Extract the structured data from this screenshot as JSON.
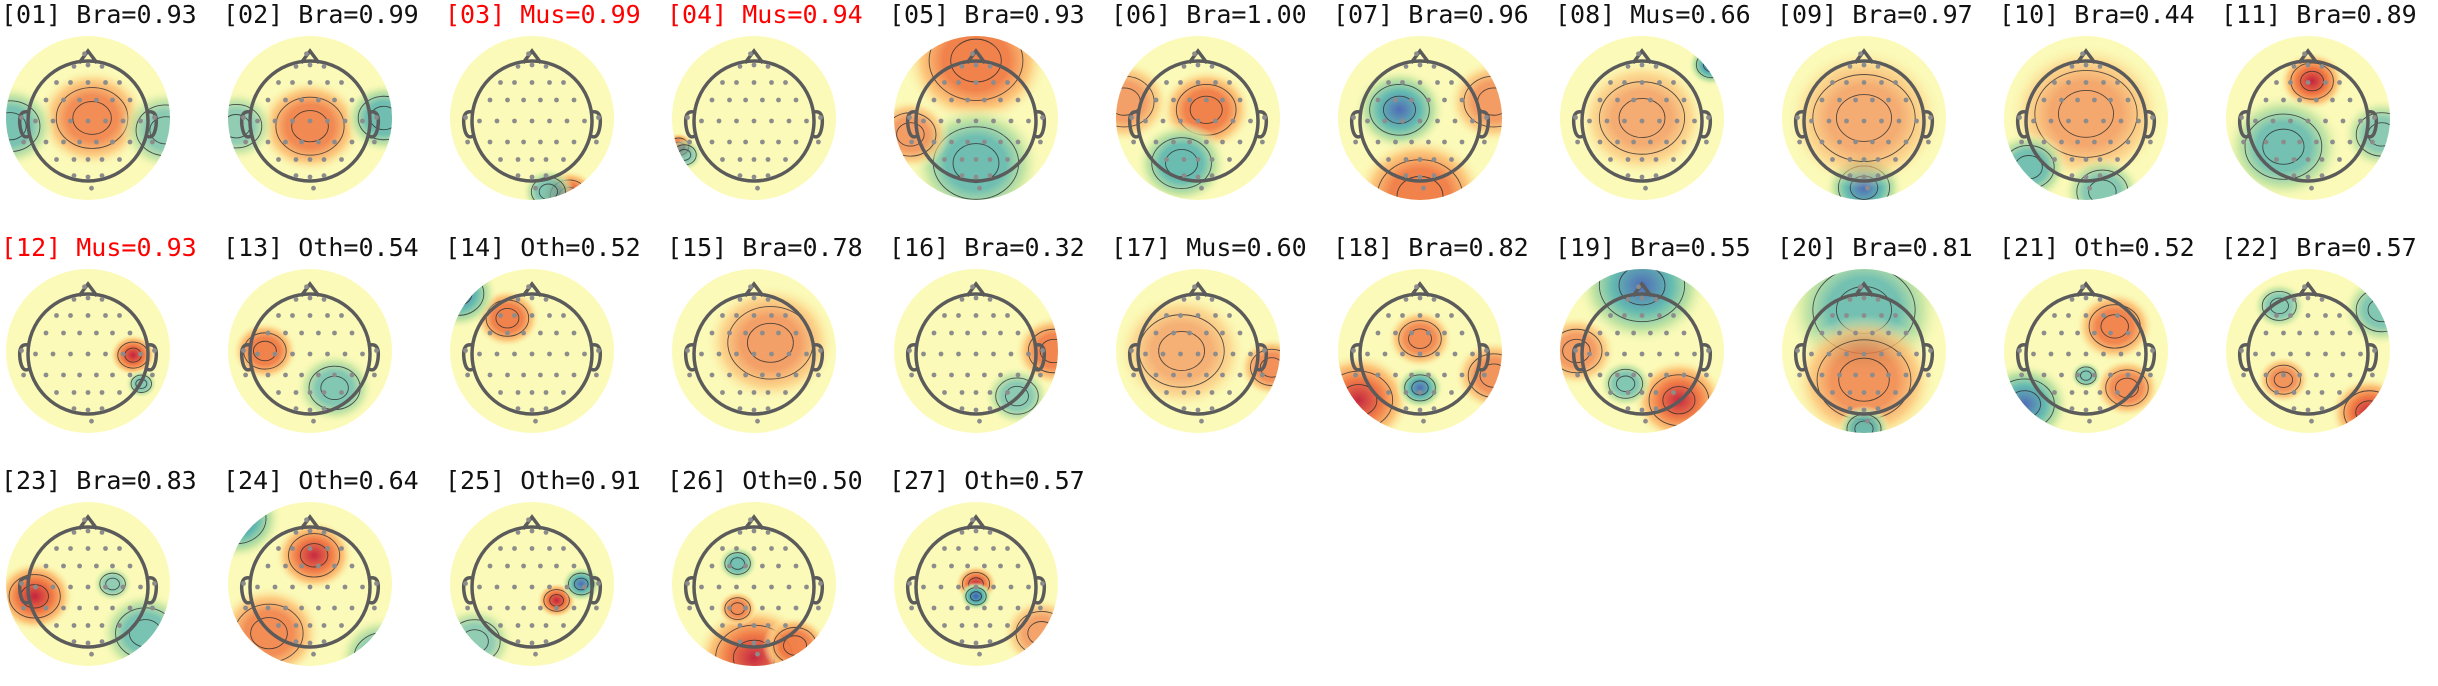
{
  "colors": {
    "label_default": "#111111",
    "label_flagged": "#ff0000",
    "colormap": [
      "#3e5fb6",
      "#56b4b0",
      "#bfe3a0",
      "#fbfab8",
      "#fcc77a",
      "#f07a45",
      "#c4233d"
    ],
    "head_outline": "#5b5b5b",
    "sensor": "#8c8c8c",
    "contour": "#2c2c2c"
  },
  "components": [
    {
      "label": "[01] Bra=0.93",
      "flagged": false,
      "icon": "topomap-icon"
    },
    {
      "label": "[02] Bra=0.99",
      "flagged": false,
      "icon": "topomap-icon"
    },
    {
      "label": "[03] Mus=0.99",
      "flagged": true,
      "icon": "topomap-icon"
    },
    {
      "label": "[04] Mus=0.94",
      "flagged": true,
      "icon": "topomap-icon"
    },
    {
      "label": "[05] Bra=0.93",
      "flagged": false,
      "icon": "topomap-icon"
    },
    {
      "label": "[06] Bra=1.00",
      "flagged": false,
      "icon": "topomap-icon"
    },
    {
      "label": "[07] Bra=0.96",
      "flagged": false,
      "icon": "topomap-icon"
    },
    {
      "label": "[08] Mus=0.66",
      "flagged": false,
      "icon": "topomap-icon"
    },
    {
      "label": "[09] Bra=0.97",
      "flagged": false,
      "icon": "topomap-icon"
    },
    {
      "label": "[10] Bra=0.44",
      "flagged": false,
      "icon": "topomap-icon"
    },
    {
      "label": "[11] Bra=0.89",
      "flagged": false,
      "icon": "topomap-icon"
    },
    {
      "label": "[12] Mus=0.93",
      "flagged": true,
      "icon": "topomap-icon"
    },
    {
      "label": "[13] Oth=0.54",
      "flagged": false,
      "icon": "topomap-icon"
    },
    {
      "label": "[14] Oth=0.52",
      "flagged": false,
      "icon": "topomap-icon"
    },
    {
      "label": "[15] Bra=0.78",
      "flagged": false,
      "icon": "topomap-icon"
    },
    {
      "label": "[16] Bra=0.32",
      "flagged": false,
      "icon": "topomap-icon"
    },
    {
      "label": "[17] Mus=0.60",
      "flagged": false,
      "icon": "topomap-icon"
    },
    {
      "label": "[18] Bra=0.82",
      "flagged": false,
      "icon": "topomap-icon"
    },
    {
      "label": "[19] Bra=0.55",
      "flagged": false,
      "icon": "topomap-icon"
    },
    {
      "label": "[20] Bra=0.81",
      "flagged": false,
      "icon": "topomap-icon"
    },
    {
      "label": "[21] Oth=0.52",
      "flagged": false,
      "icon": "topomap-icon"
    },
    {
      "label": "[22] Bra=0.57",
      "flagged": false,
      "icon": "topomap-icon"
    },
    {
      "label": "[23] Bra=0.83",
      "flagged": false,
      "icon": "topomap-icon"
    },
    {
      "label": "[24] Oth=0.64",
      "flagged": false,
      "icon": "topomap-icon"
    },
    {
      "label": "[25] Oth=0.91",
      "flagged": false,
      "icon": "topomap-icon"
    },
    {
      "label": "[26] Oth=0.50",
      "flagged": false,
      "icon": "topomap-icon"
    },
    {
      "label": "[27] Oth=0.57",
      "flagged": false,
      "icon": "topomap-icon"
    }
  ]
}
